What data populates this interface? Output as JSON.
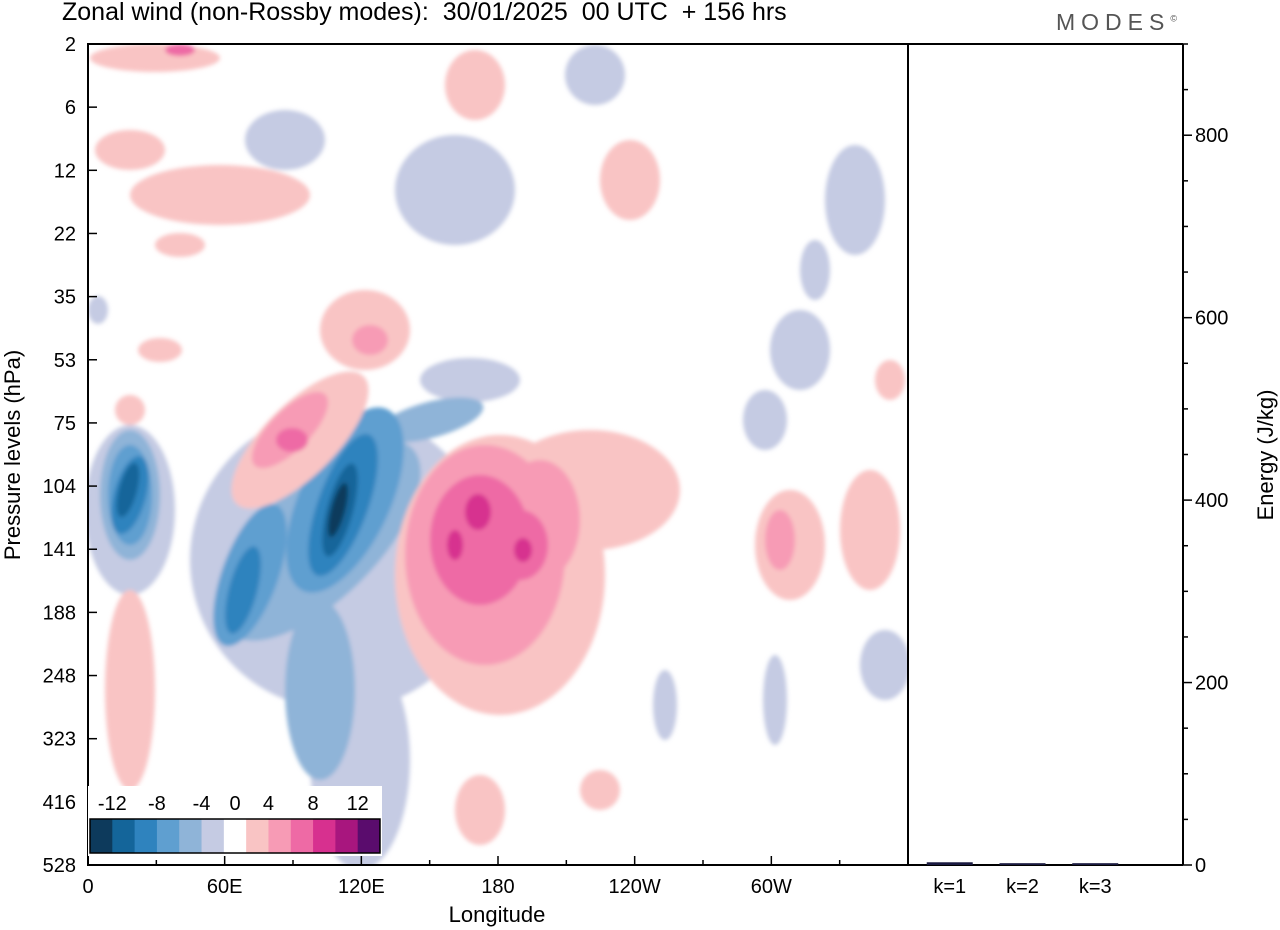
{
  "header": {
    "title": "Zonal wind (non-Rossby modes):  30/01/2025  00 UTC  + 156 hrs",
    "logo": "MODES",
    "logo_mark": "©"
  },
  "chart_data": [
    {
      "type": "heatmap",
      "variable": "Zonal wind",
      "xlabel": "Longitude",
      "ylabel": "Pressure levels (hPa)",
      "x_ticks": [
        "0",
        "60E",
        "120E",
        "180",
        "120W",
        "60W"
      ],
      "x_tick_values": [
        0,
        60,
        120,
        180,
        240,
        300
      ],
      "xlim": [
        0,
        360
      ],
      "y_ticks": [
        "2",
        "6",
        "12",
        "22",
        "35",
        "53",
        "75",
        "104",
        "141",
        "188",
        "248",
        "323",
        "416",
        "528"
      ],
      "y_scale": "pressure levels (top = 2 hPa, bottom = 528 hPa)",
      "colorbar": {
        "labels": [
          "-12",
          "-8",
          "-4",
          "0",
          "4",
          "8",
          "12"
        ],
        "label_values": [
          -12,
          -8,
          -4,
          0,
          4,
          8,
          12
        ],
        "levels": [
          -14,
          -12,
          -10,
          -8,
          -6,
          -4,
          -2,
          2,
          4,
          6,
          8,
          10,
          12,
          14
        ],
        "colors": [
          "#0d3a5c",
          "#14659a",
          "#2f83be",
          "#5f9fd0",
          "#8fb4d8",
          "#c5cbe3",
          "#ffffff",
          "#f9c4c4",
          "#f79bb5",
          "#ee6aa5",
          "#d7308f",
          "#a8167e",
          "#5a0c6d"
        ],
        "placement": "bottom-left"
      },
      "features": [
        {
          "description": "negative core",
          "lon": 15,
          "level_hPa": 118,
          "value": -14
        },
        {
          "description": "negative band",
          "lon": 65,
          "level_hPa": 160,
          "value": -12
        },
        {
          "description": "negative core",
          "lon": 108,
          "level_hPa": 130,
          "value": -14
        },
        {
          "description": "positive core",
          "lon": 165,
          "level_hPa": 130,
          "value": 12
        },
        {
          "description": "positive core",
          "lon": 190,
          "level_hPa": 141,
          "value": 10
        },
        {
          "description": "positive maximum",
          "lon": 40,
          "level_hPa": 2,
          "value": 6
        }
      ]
    },
    {
      "type": "bar",
      "categories": [
        "k=1",
        "k=2",
        "k=3"
      ],
      "values": [
        3,
        2,
        2
      ],
      "ylabel": "Energy (J/kg)",
      "ylim": [
        0,
        900
      ],
      "y_ticks": [
        0,
        200,
        400,
        600,
        800
      ],
      "bar_color": "#1a1a40"
    }
  ]
}
